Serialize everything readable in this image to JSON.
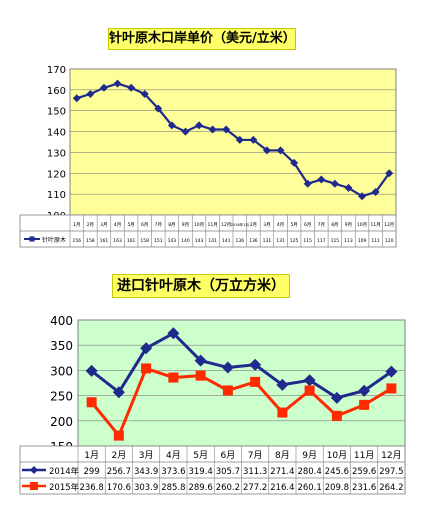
{
  "chart_data": [
    {
      "type": "line",
      "title": "针叶原木口岸单价（美元/立米）",
      "ylim": [
        100,
        170
      ],
      "yticks": [
        100,
        110,
        120,
        130,
        140,
        150,
        160,
        170
      ],
      "grid": true,
      "legend": "bottom-left (data table row)",
      "categories": [
        "1月",
        "2月",
        "3月",
        "4月",
        "5月",
        "6月",
        "7月",
        "8月",
        "9月",
        "10月",
        "11月",
        "12月",
        "2016年1月",
        "2月",
        "3月",
        "4月",
        "5月",
        "6月",
        "7月",
        "8月",
        "9月",
        "10月",
        "11月",
        "12月"
      ],
      "series": [
        {
          "name": "针叶原木",
          "color": "#1f2a8c",
          "values": [
            156,
            158,
            161,
            163,
            161,
            158,
            151,
            143,
            140,
            143,
            141,
            141,
            136,
            136,
            131,
            131,
            125,
            115,
            117,
            115,
            113,
            109,
            111,
            120
          ]
        }
      ],
      "colors": {
        "plot_bg": "#ffff99",
        "title_bg": "#ffff66"
      }
    },
    {
      "type": "line",
      "title": "进口针叶原木（万立方米）",
      "ylim": [
        150,
        400
      ],
      "yticks": [
        150,
        200,
        250,
        300,
        350,
        400
      ],
      "grid": true,
      "legend": "bottom-left (data table rows)",
      "categories": [
        "1月",
        "2月",
        "3月",
        "4月",
        "5月",
        "6月",
        "7月",
        "8月",
        "9月",
        "10月",
        "11月",
        "12月"
      ],
      "series": [
        {
          "name": "2014年",
          "color": "#1f2a8c",
          "marker": "diamond",
          "values": [
            299,
            256.7,
            343.9,
            373.6,
            319.4,
            305.7,
            311.3,
            271.4,
            280.4,
            245.6,
            259.6,
            297.5
          ],
          "labels": [
            "299",
            "256.7",
            "343.9",
            "373.6",
            "319.4",
            "305.7",
            "311.3",
            "271.4",
            "280.4",
            "245.6",
            "259.6",
            "297.5"
          ]
        },
        {
          "name": "2015年",
          "color": "#ff2a00",
          "marker": "square",
          "values": [
            236.8,
            170.6,
            303.9,
            285.8,
            289.6,
            260.2,
            277.2,
            216.4,
            260.1,
            209.8,
            231.6,
            264.2
          ],
          "labels": [
            "236.8",
            "170.6",
            "303.9",
            "285.8",
            "289.6",
            "260.2",
            "277.2",
            "216.4",
            "260.1",
            "209.8",
            "231.6",
            "264.2"
          ]
        }
      ],
      "colors": {
        "plot_bg": "#ccffcc",
        "title_bg": "#ffff66"
      }
    }
  ]
}
